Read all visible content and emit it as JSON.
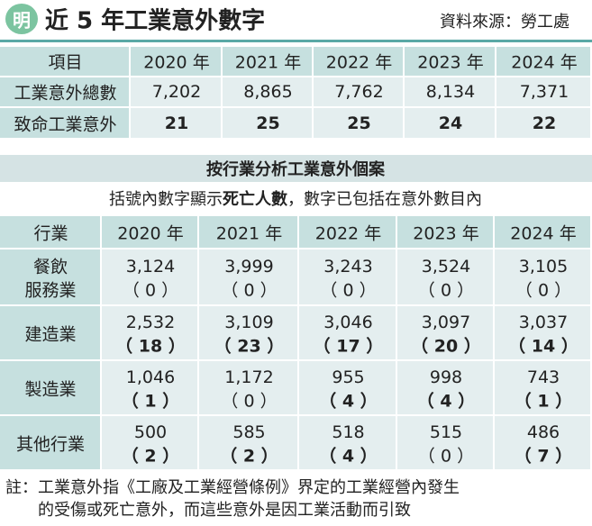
{
  "header": {
    "logo": "明",
    "title": "近 5 年工業意外數字",
    "source": "資料來源：勞工處"
  },
  "table1": {
    "columns": [
      "項目",
      "2020 年",
      "2021 年",
      "2022 年",
      "2023 年",
      "2024 年"
    ],
    "rows": [
      {
        "cells": [
          "工業意外總數",
          "7,202",
          "8,865",
          "7,762",
          "8,134",
          "7,371"
        ],
        "bold": false
      },
      {
        "cells": [
          "致命工業意外",
          "21",
          "25",
          "25",
          "24",
          "22"
        ],
        "bold": true
      }
    ]
  },
  "section2": {
    "title": "按行業分析工業意外個案",
    "subtitle": [
      {
        "text": "括號內數字顯示",
        "bold": false
      },
      {
        "text": "死亡人數",
        "bold": true
      },
      {
        "text": "，數字已包括在意外數目內",
        "bold": false
      }
    ]
  },
  "table2": {
    "columns": [
      "行業",
      "2020 年",
      "2021 年",
      "2022 年",
      "2023 年",
      "2024 年"
    ],
    "rows": [
      {
        "industry": [
          "餐飲",
          "服務業"
        ],
        "cells": [
          {
            "count": "3,124",
            "deaths": "（ 0 ）",
            "bold": false
          },
          {
            "count": "3,999",
            "deaths": "（ 0 ）",
            "bold": false
          },
          {
            "count": "3,243",
            "deaths": "（ 0 ）",
            "bold": false
          },
          {
            "count": "3,524",
            "deaths": "（ 0 ）",
            "bold": false
          },
          {
            "count": "3,105",
            "deaths": "（ 0 ）",
            "bold": false
          }
        ]
      },
      {
        "industry": [
          "建造業"
        ],
        "cells": [
          {
            "count": "2,532",
            "deaths": "（ 18 ）",
            "bold": true
          },
          {
            "count": "3,109",
            "deaths": "（ 23 ）",
            "bold": true
          },
          {
            "count": "3,046",
            "deaths": "（ 17 ）",
            "bold": true
          },
          {
            "count": "3,097",
            "deaths": "（ 20 ）",
            "bold": true
          },
          {
            "count": "3,037",
            "deaths": "（ 14 ）",
            "bold": true
          }
        ]
      },
      {
        "industry": [
          "製造業"
        ],
        "cells": [
          {
            "count": "1,046",
            "deaths": "（ 1 ）",
            "bold": true
          },
          {
            "count": "1,172",
            "deaths": "（ 0 ）",
            "bold": false
          },
          {
            "count": "955",
            "deaths": "（ 4 ）",
            "bold": true
          },
          {
            "count": "998",
            "deaths": "（ 4 ）",
            "bold": true
          },
          {
            "count": "743",
            "deaths": "（ 1 ）",
            "bold": true
          }
        ]
      },
      {
        "industry": [
          "其他行業"
        ],
        "cells": [
          {
            "count": "500",
            "deaths": "（ 2 ）",
            "bold": true
          },
          {
            "count": "585",
            "deaths": "（ 2 ）",
            "bold": true
          },
          {
            "count": "518",
            "deaths": "（ 4 ）",
            "bold": true
          },
          {
            "count": "515",
            "deaths": "（ 0 ）",
            "bold": false
          },
          {
            "count": "486",
            "deaths": "（ 7 ）",
            "bold": true
          }
        ]
      }
    ]
  },
  "note": [
    "註：工業意外指《工廠及工業經營條例》界定的工業經營內發生",
    "的受傷或死亡意外，而這些意外是因工業活動而引致"
  ]
}
